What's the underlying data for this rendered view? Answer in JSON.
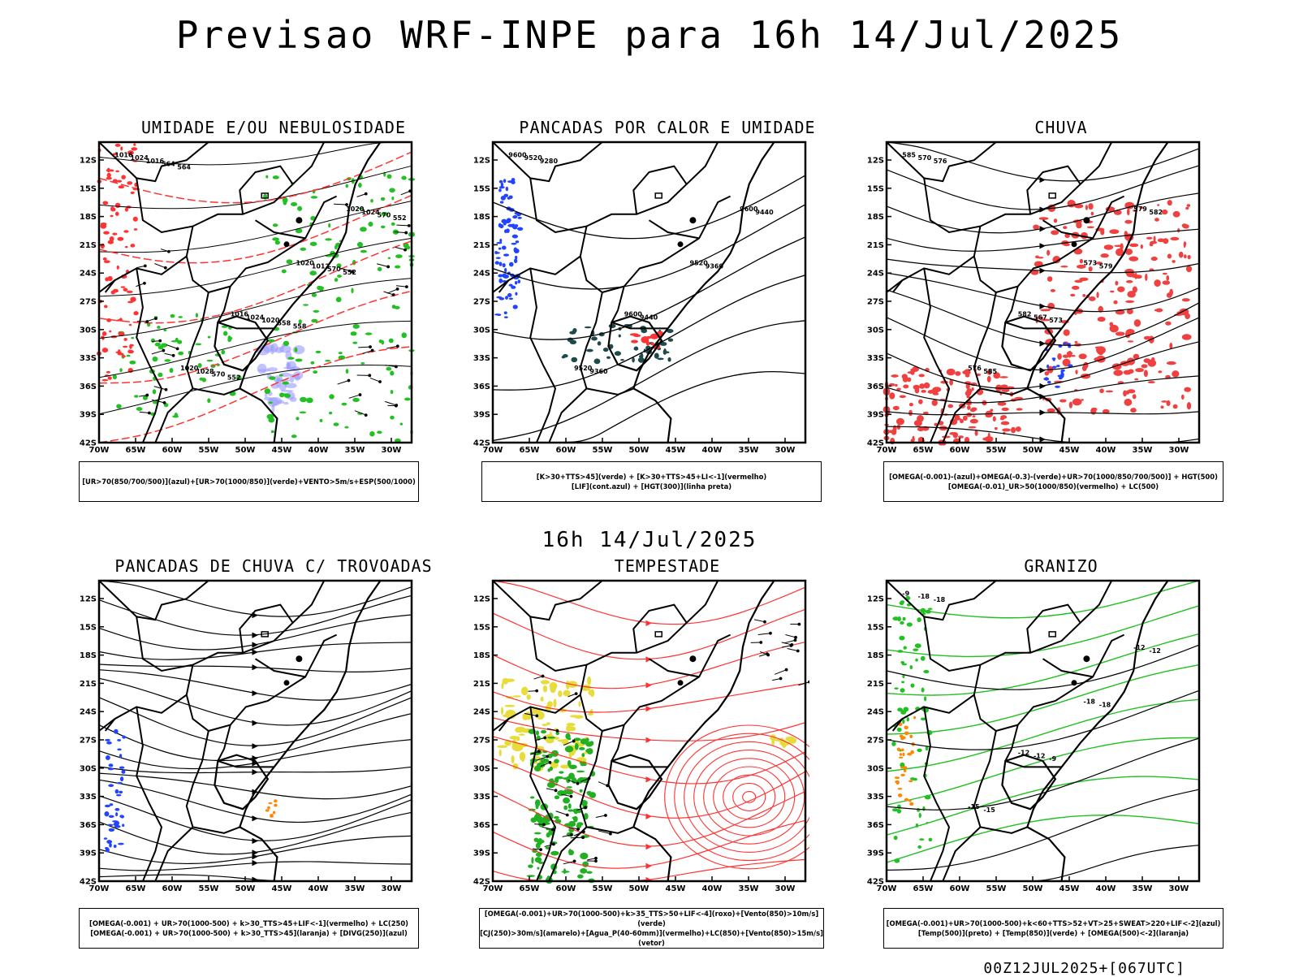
{
  "title": "Previsao WRF-INPE  para 16h 14/Jul/2025",
  "subtitle": "16h 14/Jul/2025",
  "footer": "00Z12JUL2025+[067UTC]",
  "lat_ticks": [
    "12S",
    "15S",
    "18S",
    "21S",
    "24S",
    "27S",
    "30S",
    "33S",
    "36S",
    "39S",
    "42S"
  ],
  "lon_ticks": [
    "70W",
    "65W",
    "60W",
    "55W",
    "50W",
    "45W",
    "40W",
    "35W",
    "30W"
  ],
  "panels": [
    {
      "title": "UMIDADE E/OU NEBULOSIDADE",
      "legend": [
        "[UR>70(850/700/500)](azul)+[UR>70(1000/850)](verde)+VENTO>5m/s+ESP(500/1000)"
      ],
      "labels": [
        "1016",
        "1016",
        "1020",
        "1020",
        "1020",
        "1024",
        "1024",
        "1024",
        "1028",
        "1012",
        "1016",
        "1020",
        "570",
        "570",
        "570",
        "564",
        "558",
        "552",
        "552",
        "552",
        "564",
        "558"
      ],
      "colors": {
        "moist_low": "#22c022",
        "moist_mid": "#9999ff",
        "thickness": "#ff3333"
      }
    },
    {
      "title": "PANCADAS POR CALOR E UMIDADE",
      "legend": [
        "[K>30+TTS>45](verde) + [K>30+TTS>45+LI<-1](vermelho)",
        "[LIF](cont.azul) + [HGT(300)](linha preta)"
      ],
      "labels": [
        "9600",
        "9600",
        "9600",
        "9520",
        "9520",
        "9520",
        "9440",
        "9440",
        "9360",
        "9360",
        "9280"
      ],
      "colors": {
        "k_tts": "#1e4a4a",
        "k_tts_li": "#ff3333",
        "lif": "#2244ff"
      }
    },
    {
      "title": "CHUVA",
      "legend": [
        "[OMEGA(-0.001)-(azul)+OMEGA(-0.3)-(verde)+UR>70(1000/850/700/500)] + HGT(500)",
        "[OMEGA(-0.01)_UR>50(1000/850)(vermelho) + LC(500)"
      ],
      "labels": [
        "585",
        "582",
        "579",
        "576",
        "573",
        "570",
        "567",
        "582",
        "585",
        "579",
        "576",
        "573"
      ],
      "colors": {
        "rain": "#f04040",
        "omega": "#2244ff"
      }
    },
    {
      "title": "PANCADAS DE CHUVA C/ TROVOADAS",
      "legend": [
        "[OMEGA(-0.001) + UR>70(1000-500) + k>30_TTS>45+LIF<-1](vermelho) + LC(250)",
        "[OMEGA(-0.001) + UR>70(1000-500) + k>30_TTS>45](laranja) + [DIVG(250)](azul)"
      ],
      "labels": [],
      "colors": {
        "divg": "#2244ff",
        "orange": "#ff8800"
      }
    },
    {
      "title": "TEMPESTADE",
      "legend": [
        "[OMEGA(-0.001)+UR>70(1000-500)+k>35_TTS>50+LIF<-4](roxo)+[Vento(850)>10m/s](verde)",
        "[CJ(250)>30m/s](amarelo)+[Agua_P(40-60mm)](vermelho)+LC(850)+[Vento(850)>15m/s](vetor)"
      ],
      "labels": [],
      "colors": {
        "jet": "#e8dc3a",
        "wind": "#22b022",
        "stream": "#ff3333"
      }
    },
    {
      "title": "GRANIZO",
      "legend": [
        "[OMEGA(-0.001)+UR>70(1000-500)+k<60+TTS>52+VT>25+SWEAT>220+LIF<-2](azul)",
        "[Temp(500)](preto) + [Temp(850)](verde) + [OMEGA(500)<-2](laranja)"
      ],
      "labels": [
        "-9",
        "-12",
        "-12",
        "-15",
        "-18",
        "-18",
        "-12",
        "-12",
        "-15",
        "-18",
        "-18",
        "-9"
      ],
      "colors": {
        "t850": "#22c022",
        "omega": "#ff8800"
      }
    }
  ]
}
